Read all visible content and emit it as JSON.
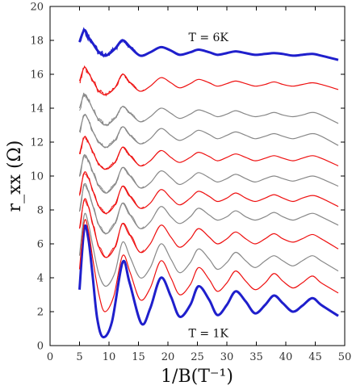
{
  "chart_data": {
    "type": "line",
    "xlabel": "1/B(T⁻¹)",
    "ylabel": "r_xx (Ω)",
    "xlim": [
      0,
      50
    ],
    "ylim": [
      0,
      20
    ],
    "xticks": [
      0,
      5,
      10,
      15,
      20,
      25,
      30,
      35,
      40,
      45,
      50
    ],
    "yticks": [
      0,
      2,
      4,
      6,
      8,
      10,
      12,
      14,
      16,
      18,
      20
    ],
    "grid": false,
    "legend": "none",
    "annotations": [
      {
        "text": "T = 6K",
        "x": 23.5,
        "y": 18.2
      },
      {
        "text": "T = 1K",
        "x": 23.5,
        "y": 0.75
      }
    ],
    "series": [
      {
        "color": "#1f1fcc",
        "width": 3,
        "noise": 0.0,
        "base": 3.3,
        "endBase": 1.75,
        "amp": 3.7,
        "ampTail": 0.5,
        "x": [
          5,
          5.8,
          6.5,
          7.2,
          8.0,
          9.0,
          10.5,
          12.3,
          13.5,
          15.5,
          17.0,
          18.8,
          20.5,
          22.0,
          23.8,
          25.2,
          27.0,
          28.4,
          30.0,
          31.5,
          33.2,
          34.8,
          36.5,
          38.0,
          39.5,
          41.2,
          42.8,
          44.5,
          46.0,
          48.9
        ],
        "y": [
          3.3,
          6.9,
          6.3,
          4.2,
          1.6,
          0.5,
          1.4,
          4.9,
          3.7,
          1.3,
          2.2,
          4.0,
          2.9,
          1.7,
          2.4,
          3.5,
          2.7,
          1.8,
          2.4,
          3.2,
          2.6,
          1.9,
          2.4,
          2.95,
          2.5,
          2.0,
          2.35,
          2.8,
          2.4,
          1.75
        ]
      },
      {
        "color": "#ee1111",
        "width": 1.2,
        "noise": 0.0,
        "x": [
          5,
          5.8,
          6.5,
          7.3,
          8.3,
          9.3,
          10.8,
          12.3,
          13.6,
          15.3,
          17.0,
          18.8,
          20.5,
          22.0,
          23.8,
          25.2,
          27.0,
          28.4,
          30.0,
          31.5,
          33.2,
          34.8,
          36.5,
          38.0,
          39.5,
          41.2,
          42.8,
          44.5,
          46.0,
          48.9
        ],
        "y": [
          4.5,
          7.3,
          6.8,
          5.0,
          3.0,
          2.0,
          2.9,
          5.3,
          4.3,
          2.7,
          3.4,
          5.0,
          4.0,
          3.0,
          3.6,
          4.6,
          3.9,
          3.2,
          3.7,
          4.4,
          3.8,
          3.3,
          3.7,
          4.25,
          3.8,
          3.4,
          3.7,
          4.1,
          3.7,
          3.1
        ]
      },
      {
        "color": "#888888",
        "width": 1.2,
        "noise": 0.0,
        "x": [
          5,
          5.8,
          6.5,
          7.3,
          8.3,
          9.5,
          11.0,
          12.3,
          13.6,
          15.3,
          17.0,
          18.8,
          20.5,
          22.0,
          23.8,
          25.2,
          27.0,
          28.4,
          30.0,
          31.5,
          33.2,
          34.8,
          36.5,
          38.0,
          39.5,
          41.2,
          42.8,
          44.5,
          46.0,
          48.9
        ],
        "y": [
          5.3,
          7.7,
          7.2,
          5.8,
          4.2,
          3.5,
          4.3,
          6.1,
          5.2,
          4.0,
          4.6,
          6.0,
          5.1,
          4.3,
          4.9,
          5.7,
          5.1,
          4.5,
          4.9,
          5.5,
          5.0,
          4.6,
          5.0,
          5.3,
          5.0,
          4.7,
          5.0,
          5.3,
          5.0,
          4.4
        ]
      },
      {
        "color": "#ee1111",
        "width": 1.2,
        "noise": 0.05,
        "x": [
          5,
          5.8,
          6.5,
          7.3,
          8.3,
          9.5,
          11.0,
          12.3,
          13.6,
          15.3,
          17.0,
          18.8,
          20.5,
          22.0,
          23.8,
          25.2,
          27.0,
          28.4,
          30.0,
          31.5,
          33.2,
          34.8,
          36.5,
          38.0,
          39.5,
          41.2,
          42.8,
          44.5,
          46.0,
          48.9
        ],
        "y": [
          6.9,
          8.6,
          8.2,
          7.1,
          5.8,
          5.2,
          5.8,
          7.2,
          6.5,
          5.5,
          6.0,
          7.1,
          6.4,
          5.8,
          6.3,
          6.9,
          6.4,
          6.0,
          6.3,
          6.7,
          6.3,
          6.0,
          6.3,
          6.6,
          6.3,
          6.1,
          6.3,
          6.55,
          6.3,
          5.7
        ]
      },
      {
        "color": "#888888",
        "width": 1.2,
        "noise": 0.08,
        "x": [
          5,
          5.8,
          6.5,
          7.3,
          8.3,
          9.5,
          11.0,
          12.3,
          13.6,
          15.3,
          17.0,
          18.8,
          20.5,
          22.0,
          23.8,
          25.2,
          27.0,
          28.4,
          30.0,
          31.5,
          33.2,
          34.8,
          36.5,
          38.0,
          39.5,
          41.2,
          42.8,
          44.5,
          46.0,
          48.9
        ],
        "y": [
          7.9,
          9.5,
          9.1,
          8.2,
          7.1,
          6.6,
          7.2,
          8.4,
          7.7,
          6.9,
          7.3,
          8.2,
          7.6,
          7.2,
          7.6,
          8.1,
          7.7,
          7.4,
          7.6,
          7.95,
          7.6,
          7.4,
          7.6,
          7.85,
          7.6,
          7.4,
          7.6,
          7.8,
          7.6,
          7.1
        ]
      },
      {
        "color": "#ee1111",
        "width": 1.2,
        "noise": 0.1,
        "x": [
          5,
          5.8,
          6.5,
          7.3,
          8.3,
          9.5,
          11.0,
          12.3,
          13.6,
          15.3,
          17.0,
          18.8,
          20.5,
          22.0,
          23.8,
          25.2,
          27.0,
          28.4,
          30.0,
          31.5,
          33.2,
          34.8,
          36.5,
          38.0,
          39.5,
          41.2,
          42.8,
          44.5,
          46.0,
          48.9
        ],
        "y": [
          8.9,
          10.2,
          9.9,
          9.1,
          8.2,
          7.8,
          8.3,
          9.4,
          8.8,
          8.1,
          8.4,
          9.2,
          8.7,
          8.3,
          8.7,
          9.1,
          8.8,
          8.5,
          8.7,
          9.0,
          8.7,
          8.5,
          8.7,
          8.9,
          8.7,
          8.5,
          8.7,
          8.85,
          8.7,
          8.2
        ]
      },
      {
        "color": "#888888",
        "width": 1.2,
        "noise": 0.12,
        "x": [
          5,
          5.8,
          6.5,
          7.3,
          8.3,
          9.5,
          11.0,
          12.3,
          13.6,
          15.3,
          17.0,
          18.8,
          20.5,
          22.0,
          23.8,
          25.2,
          27.0,
          28.4,
          30.0,
          31.5,
          33.2,
          34.8,
          36.5,
          38.0,
          39.5,
          41.2,
          42.8,
          44.5,
          46.0,
          48.9
        ],
        "y": [
          10.0,
          11.2,
          10.9,
          10.2,
          9.4,
          9.0,
          9.5,
          10.5,
          10.0,
          9.3,
          9.6,
          10.3,
          9.9,
          9.5,
          9.85,
          10.2,
          9.9,
          9.65,
          9.85,
          10.1,
          9.85,
          9.65,
          9.85,
          10.0,
          9.85,
          9.7,
          9.85,
          10.0,
          9.85,
          9.4
        ]
      },
      {
        "color": "#ee1111",
        "width": 1.2,
        "noise": 0.14,
        "x": [
          5,
          5.8,
          6.5,
          7.3,
          8.3,
          9.5,
          11.0,
          12.3,
          13.6,
          15.3,
          17.0,
          18.8,
          20.5,
          22.0,
          23.8,
          25.2,
          27.0,
          28.4,
          30.0,
          31.5,
          33.2,
          34.8,
          36.5,
          38.0,
          39.5,
          41.2,
          42.8,
          44.5,
          46.0,
          48.9
        ],
        "y": [
          11.3,
          12.3,
          12.0,
          11.4,
          10.7,
          10.4,
          10.8,
          11.7,
          11.2,
          10.6,
          10.9,
          11.5,
          11.1,
          10.8,
          11.1,
          11.4,
          11.15,
          10.9,
          11.1,
          11.3,
          11.1,
          10.9,
          11.05,
          11.2,
          11.05,
          10.9,
          11.05,
          11.2,
          11.05,
          10.6
        ]
      },
      {
        "color": "#888888",
        "width": 1.2,
        "noise": 0.16,
        "x": [
          5,
          5.8,
          6.5,
          7.3,
          8.3,
          9.5,
          11.0,
          12.3,
          13.6,
          15.3,
          17.0,
          18.8,
          20.5,
          22.0,
          23.8,
          25.2,
          27.0,
          28.4,
          30.0,
          31.5,
          33.2,
          34.8,
          36.5,
          38.0,
          39.5,
          41.2,
          42.8,
          44.5,
          46.0,
          48.9
        ],
        "y": [
          12.6,
          13.6,
          13.3,
          12.6,
          12.0,
          11.7,
          12.1,
          12.9,
          12.4,
          11.9,
          12.2,
          12.8,
          12.4,
          12.1,
          12.4,
          12.7,
          12.45,
          12.2,
          12.4,
          12.6,
          12.4,
          12.2,
          12.35,
          12.5,
          12.35,
          12.2,
          12.35,
          12.5,
          12.35,
          11.8
        ]
      },
      {
        "color": "#888888",
        "width": 1.2,
        "noise": 0.18,
        "x": [
          5,
          5.8,
          6.5,
          7.3,
          8.3,
          9.5,
          11.0,
          12.3,
          13.6,
          15.3,
          17.0,
          18.8,
          20.5,
          22.0,
          23.8,
          25.2,
          27.0,
          28.4,
          30.0,
          31.5,
          33.2,
          34.8,
          36.5,
          38.0,
          39.5,
          41.2,
          42.8,
          44.5,
          46.0,
          48.9
        ],
        "y": [
          14.0,
          14.8,
          14.5,
          13.9,
          13.3,
          13.0,
          13.4,
          14.1,
          13.7,
          13.2,
          13.5,
          14.0,
          13.7,
          13.4,
          13.65,
          13.9,
          13.7,
          13.5,
          13.65,
          13.85,
          13.65,
          13.5,
          13.6,
          13.75,
          13.6,
          13.5,
          13.6,
          13.75,
          13.6,
          13.1
        ]
      },
      {
        "color": "#ee1111",
        "width": 1.2,
        "noise": 0.2,
        "x": [
          5,
          5.8,
          6.5,
          7.3,
          8.3,
          9.5,
          11.0,
          12.3,
          13.6,
          15.3,
          17.0,
          18.8,
          20.5,
          22.0,
          23.8,
          25.2,
          27.0,
          28.4,
          30.0,
          31.5,
          33.2,
          34.8,
          36.5,
          38.0,
          39.5,
          41.2,
          42.8,
          44.5,
          46.0,
          48.9
        ],
        "y": [
          15.6,
          16.4,
          16.1,
          15.6,
          15.0,
          14.8,
          15.2,
          16.0,
          15.5,
          15.0,
          15.3,
          15.8,
          15.5,
          15.2,
          15.45,
          15.7,
          15.5,
          15.3,
          15.45,
          15.6,
          15.45,
          15.3,
          15.4,
          15.55,
          15.4,
          15.3,
          15.4,
          15.5,
          15.4,
          15.1
        ]
      },
      {
        "color": "#1f1fcc",
        "width": 3,
        "noise": 0.28,
        "x": [
          5,
          5.8,
          6.5,
          7.3,
          8.3,
          9.5,
          11.0,
          12.3,
          13.6,
          15.3,
          17.0,
          18.8,
          20.5,
          22.0,
          23.8,
          25.2,
          27.0,
          28.4,
          30.0,
          31.5,
          33.2,
          34.8,
          36.5,
          38.0,
          39.5,
          41.2,
          42.8,
          44.5,
          46.0,
          48.9
        ],
        "y": [
          17.9,
          18.6,
          18.2,
          17.8,
          17.3,
          17.1,
          17.5,
          18.0,
          17.6,
          17.1,
          17.3,
          17.6,
          17.4,
          17.15,
          17.3,
          17.45,
          17.3,
          17.15,
          17.25,
          17.35,
          17.25,
          17.15,
          17.2,
          17.25,
          17.2,
          17.1,
          17.15,
          17.2,
          17.1,
          16.85
        ]
      }
    ]
  }
}
